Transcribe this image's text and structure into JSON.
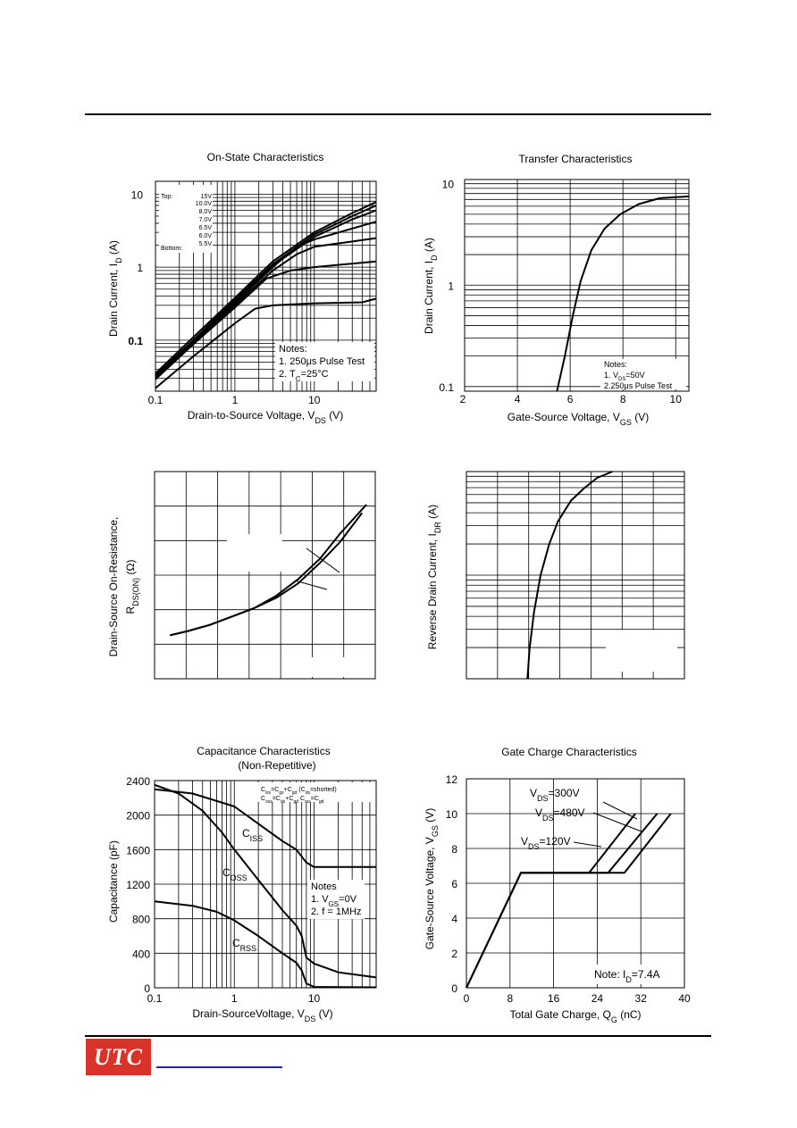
{
  "colors": {
    "ink": "#000000",
    "grid": "#000000",
    "brand": "#d8322a",
    "link": "#2222cc"
  },
  "logo": {
    "text": "UTC"
  },
  "chart_data": [
    {
      "id": "on-state",
      "type": "line",
      "title": "On-State Characteristics",
      "xlabel": "Drain-to-Source Voltage, V_DS (V)",
      "ylabel": "Drain Current, I_D (A)",
      "xscale": "log",
      "yscale": "log",
      "xlim": [
        0.1,
        60
      ],
      "ylim": [
        0.02,
        15
      ],
      "xticks": [
        "0.1",
        "1",
        "10"
      ],
      "yticks": [
        "0.1",
        "1",
        "10"
      ],
      "legend": {
        "header": "Top:",
        "footer": "Bottom:",
        "entries": [
          "15V",
          "10.0V",
          "8.0V",
          "7.0V",
          "6.5V",
          "6.0V",
          "5.5V"
        ]
      },
      "notes": [
        "Notes:",
        "1. 250μs Pulse Test",
        "2. Tc=25°C"
      ],
      "series": [
        {
          "x": [
            0.1,
            0.3,
            1,
            3,
            10,
            30,
            60
          ],
          "values": [
            0.035,
            0.11,
            0.38,
            1.2,
            3.0,
            5.5,
            7.8
          ]
        },
        {
          "x": [
            0.1,
            0.3,
            1,
            3,
            10,
            30,
            60
          ],
          "values": [
            0.033,
            0.1,
            0.36,
            1.1,
            2.8,
            5.0,
            7.0
          ]
        },
        {
          "x": [
            0.1,
            0.3,
            1,
            3,
            10,
            30,
            60
          ],
          "values": [
            0.032,
            0.1,
            0.34,
            1.05,
            2.6,
            4.5,
            6.0
          ]
        },
        {
          "x": [
            0.1,
            0.3,
            1,
            3,
            6,
            10,
            60
          ],
          "values": [
            0.031,
            0.095,
            0.32,
            1.0,
            1.9,
            2.4,
            4.2
          ]
        },
        {
          "x": [
            0.1,
            0.3,
            1,
            3,
            6,
            10,
            60
          ],
          "values": [
            0.03,
            0.09,
            0.3,
            0.9,
            1.5,
            1.9,
            2.5
          ]
        },
        {
          "x": [
            0.1,
            0.3,
            1,
            2.5,
            5,
            10,
            60
          ],
          "values": [
            0.029,
            0.088,
            0.28,
            0.7,
            0.9,
            1.0,
            1.2
          ]
        },
        {
          "x": [
            0.1,
            0.3,
            1,
            1.8,
            3,
            10,
            40,
            60
          ],
          "values": [
            0.022,
            0.06,
            0.17,
            0.27,
            0.3,
            0.32,
            0.33,
            0.37
          ]
        }
      ]
    },
    {
      "id": "transfer",
      "type": "line",
      "title": "Transfer Characteristics",
      "xlabel": "Gate-Source Voltage, V_GS (V)",
      "ylabel": "Drain Current, I_D (A)",
      "yscale": "log",
      "xlim": [
        2,
        10.5
      ],
      "ylim": [
        0.09,
        11
      ],
      "xticks": [
        "2",
        "4",
        "6",
        "8",
        "10"
      ],
      "yticks": [
        "0.1",
        "1",
        "10"
      ],
      "notes": [
        "Notes:",
        "1. V_DS=50V",
        "2.250μs Pulse Test"
      ],
      "series": [
        {
          "x": [
            5.5,
            5.8,
            6.1,
            6.4,
            6.8,
            7.3,
            7.9,
            8.6,
            9.4,
            10.5
          ],
          "values": [
            0.09,
            0.2,
            0.5,
            1.1,
            2.2,
            3.6,
            5.0,
            6.3,
            7.2,
            7.5
          ]
        }
      ]
    },
    {
      "id": "on-resistance",
      "type": "line",
      "title": "",
      "xlabel": "",
      "ylabel": "Drain-Source On-Resistance, R_DS(ON) (Ω)",
      "xlim": [
        0,
        100
      ],
      "ylim": [
        0,
        100
      ],
      "series": [
        {
          "x": [
            7,
            15,
            25,
            35,
            45,
            55,
            65,
            75,
            84,
            94
          ],
          "values": [
            21,
            23,
            26,
            30,
            34,
            39,
            46,
            56,
            66,
            80
          ]
        },
        {
          "x": [
            7,
            15,
            25,
            35,
            45,
            55,
            65,
            75,
            84,
            96
          ],
          "values": [
            21,
            23,
            26,
            30,
            34,
            40,
            48,
            58,
            70,
            84
          ]
        }
      ]
    },
    {
      "id": "reverse-drain",
      "type": "line",
      "title": "",
      "xlabel": "",
      "ylabel": "Reverse Drain Current, I_DR (A)",
      "xlim": [
        0,
        100
      ],
      "ylim": [
        0,
        100
      ],
      "series": [
        {
          "x": [
            28,
            29,
            31,
            34,
            38,
            42,
            48,
            54,
            60,
            67
          ],
          "values": [
            0,
            15,
            32,
            50,
            65,
            76,
            86,
            92,
            97,
            100
          ]
        }
      ]
    },
    {
      "id": "capacitance",
      "type": "line",
      "title": "Capacitance Characteristics",
      "subtitle": "(Non-Repetitive)",
      "xlabel": "Drain-SourceVoltage, V_DS (V)",
      "ylabel": "Capacitance (pF)",
      "xscale": "log",
      "xlim": [
        0.1,
        60
      ],
      "ylim": [
        0,
        2400
      ],
      "xticks": [
        "0.1",
        "1",
        "10"
      ],
      "yticks": [
        "0",
        "400",
        "800",
        "1200",
        "1600",
        "2000",
        "2400"
      ],
      "legend_lines": [
        "C_iss=C_gs+C_gd (C_ds=shorted)",
        "C_oss=C_ds+C_gd  C_rss=C_gd"
      ],
      "notes": [
        "Notes",
        "1. V_GS=0V",
        "2. f = 1MHz"
      ],
      "series": [
        {
          "name": "CISS",
          "x": [
            0.1,
            0.3,
            1,
            2,
            4,
            6,
            8,
            10,
            60
          ],
          "values": [
            2300,
            2250,
            2100,
            1900,
            1700,
            1600,
            1450,
            1400,
            1400
          ]
        },
        {
          "name": "COSS",
          "x": [
            0.1,
            0.2,
            0.4,
            0.7,
            1,
            2,
            4,
            6,
            7,
            8,
            10,
            20,
            60
          ],
          "values": [
            2350,
            2250,
            2050,
            1800,
            1600,
            1250,
            900,
            720,
            600,
            350,
            280,
            180,
            120
          ]
        },
        {
          "name": "CRSS",
          "x": [
            0.1,
            0.3,
            0.6,
            1,
            2,
            4,
            6,
            7,
            8,
            10,
            60
          ],
          "values": [
            1000,
            950,
            880,
            780,
            600,
            400,
            290,
            200,
            50,
            10,
            5
          ]
        }
      ]
    },
    {
      "id": "gate-charge",
      "type": "line",
      "title": "Gate Charge Characteristics",
      "xlabel": "Total Gate Charge, Q_G (nC)",
      "ylabel": "Gate-Source Voltage, V_GS (V)",
      "xlim": [
        0,
        40
      ],
      "ylim": [
        0,
        12
      ],
      "xticks": [
        "0",
        "8",
        "16",
        "24",
        "32",
        "40"
      ],
      "yticks": [
        "0",
        "2",
        "4",
        "6",
        "8",
        "10",
        "12"
      ],
      "notes": [
        "Note: I_D=7.4A"
      ],
      "series": [
        {
          "name": "V_DS=120V",
          "x": [
            0,
            10,
            22.5,
            31
          ],
          "values": [
            0,
            6.6,
            6.6,
            10
          ]
        },
        {
          "name": "V_DS=300V",
          "x": [
            0,
            10,
            26,
            35
          ],
          "values": [
            0,
            6.6,
            6.6,
            10
          ]
        },
        {
          "name": "V_DS=480V",
          "x": [
            0,
            10,
            29,
            37.5
          ],
          "values": [
            0,
            6.6,
            6.6,
            10
          ]
        }
      ]
    }
  ]
}
